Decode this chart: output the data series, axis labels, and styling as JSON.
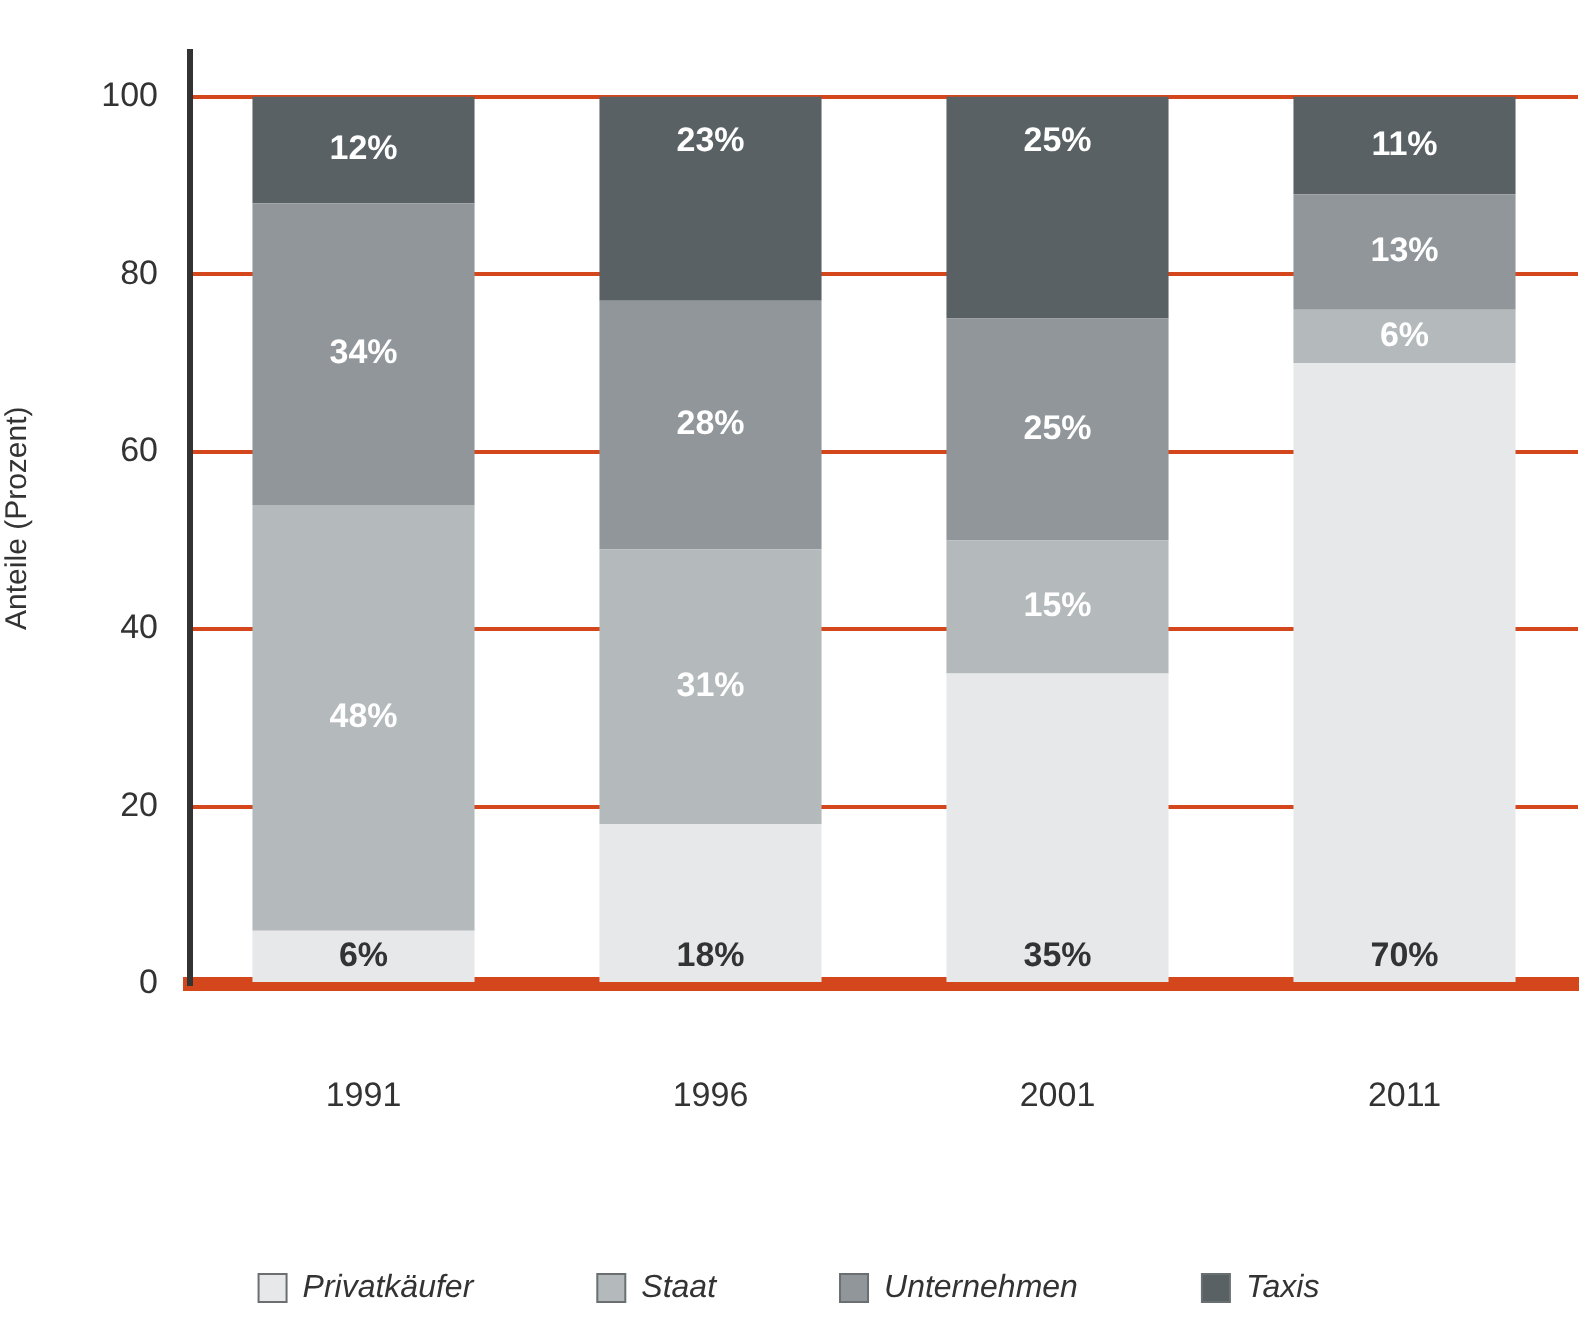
{
  "chart_data": {
    "type": "bar",
    "stacked": true,
    "categories": [
      "1991",
      "1996",
      "2001",
      "2011"
    ],
    "series": [
      {
        "name": "Privatkäufer",
        "color": "#e6e8ea",
        "values": [
          6,
          18,
          35,
          70
        ],
        "value_labels": [
          "6%",
          "18%",
          "35%",
          "70%"
        ]
      },
      {
        "name": "Staat",
        "color": "#b4b9bc",
        "values": [
          48,
          31,
          15,
          6
        ],
        "value_labels": [
          "48%",
          "31%",
          "15%",
          "6%"
        ]
      },
      {
        "name": "Unternehmen",
        "color": "#90969a",
        "values": [
          34,
          28,
          25,
          13
        ],
        "value_labels": [
          "34%",
          "28%",
          "25%",
          "13%"
        ]
      },
      {
        "name": "Taxis",
        "color": "#5a6164",
        "values": [
          12,
          23,
          25,
          11
        ],
        "value_labels": [
          "12%",
          "23%",
          "25%",
          "11%"
        ]
      }
    ],
    "ylabel": "Anteile (Prozent)",
    "ylim": [
      0,
      105
    ],
    "yticks": [
      0,
      20,
      40,
      60,
      80,
      100
    ],
    "grid": "y",
    "legend": "bottom"
  }
}
